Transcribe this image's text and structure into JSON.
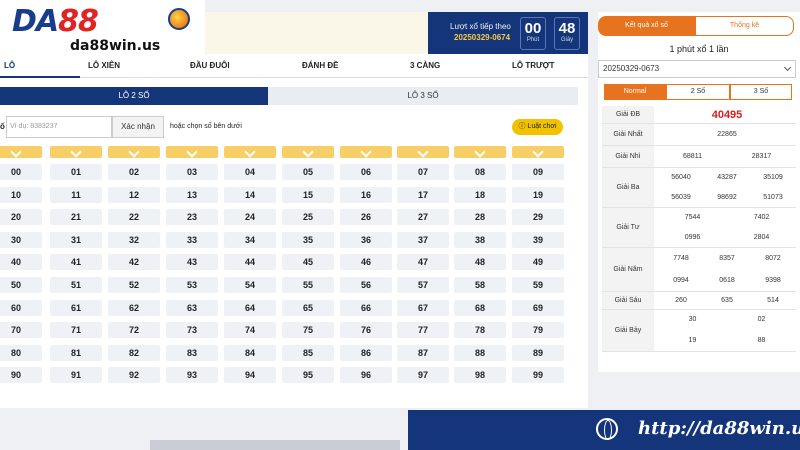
{
  "logo": {
    "brand_a": "DA",
    "brand_b": "88",
    "url": "da88win.us"
  },
  "timer": {
    "label": "Lượt xổ tiếp theo",
    "session": "20250329-0674",
    "minutes": "00",
    "minutes_unit": "Phút",
    "seconds": "48",
    "seconds_unit": "Giây"
  },
  "tabs": [
    "LÔ",
    "LÔ XIÊN",
    "ĐẦU ĐUÔI",
    "ĐÁNH ĐỀ",
    "3 CÀNG",
    "LÔ TRƯỢT"
  ],
  "subtabs": [
    "LÔ 2 SỐ",
    "LÔ 3 SỐ"
  ],
  "input": {
    "prefix": "ố",
    "placeholder": "Ví dụ: 8383237",
    "confirm": "Xác nhận",
    "hint_a": "hoặc",
    "hint_b": "chọn số bên dưới",
    "rules": "Luật chơi"
  },
  "numbers": [
    [
      "00",
      "01",
      "02",
      "03",
      "04",
      "05",
      "06",
      "07",
      "08",
      "09"
    ],
    [
      "10",
      "11",
      "12",
      "13",
      "14",
      "15",
      "16",
      "17",
      "18",
      "19"
    ],
    [
      "20",
      "21",
      "22",
      "23",
      "24",
      "25",
      "26",
      "27",
      "28",
      "29"
    ],
    [
      "30",
      "31",
      "32",
      "33",
      "34",
      "35",
      "36",
      "37",
      "38",
      "39"
    ],
    [
      "40",
      "41",
      "42",
      "43",
      "44",
      "45",
      "46",
      "47",
      "48",
      "49"
    ],
    [
      "50",
      "51",
      "52",
      "53",
      "54",
      "55",
      "56",
      "57",
      "58",
      "59"
    ],
    [
      "60",
      "61",
      "62",
      "63",
      "64",
      "65",
      "66",
      "67",
      "68",
      "69"
    ],
    [
      "70",
      "71",
      "72",
      "73",
      "74",
      "75",
      "76",
      "77",
      "78",
      "79"
    ],
    [
      "80",
      "81",
      "82",
      "83",
      "84",
      "85",
      "86",
      "87",
      "88",
      "89"
    ],
    [
      "90",
      "91",
      "92",
      "93",
      "94",
      "95",
      "96",
      "97",
      "98",
      "99"
    ]
  ],
  "results": {
    "tab_results": "Kết quả xổ số",
    "tab_stats": "Thống kê",
    "title": "1 phút xổ 1 lần",
    "session": "20250329-0673",
    "modes": [
      "Normal",
      "2 Số",
      "3 Số"
    ],
    "prizes": [
      {
        "label": "Giải ĐB",
        "values": [
          "40495"
        ]
      },
      {
        "label": "Giải Nhất",
        "values": [
          "22865"
        ]
      },
      {
        "label": "Giải Nhì",
        "values": [
          "68811",
          "28317"
        ]
      },
      {
        "label": "Giải Ba",
        "values": [
          "56040",
          "43287",
          "35109",
          "56039",
          "98692",
          "51073"
        ]
      },
      {
        "label": "Giải Tư",
        "values": [
          "7544",
          "7402",
          "0996",
          "2804"
        ]
      },
      {
        "label": "Giải Năm",
        "values": [
          "7748",
          "8357",
          "8072",
          "0994",
          "0618",
          "9398"
        ]
      },
      {
        "label": "Giải Sáu",
        "values": [
          "260",
          "635",
          "514"
        ]
      },
      {
        "label": "Giải Bảy",
        "values": [
          "30",
          "02",
          "19",
          "88"
        ]
      }
    ]
  },
  "banner": {
    "url": "http://da88win.us"
  }
}
